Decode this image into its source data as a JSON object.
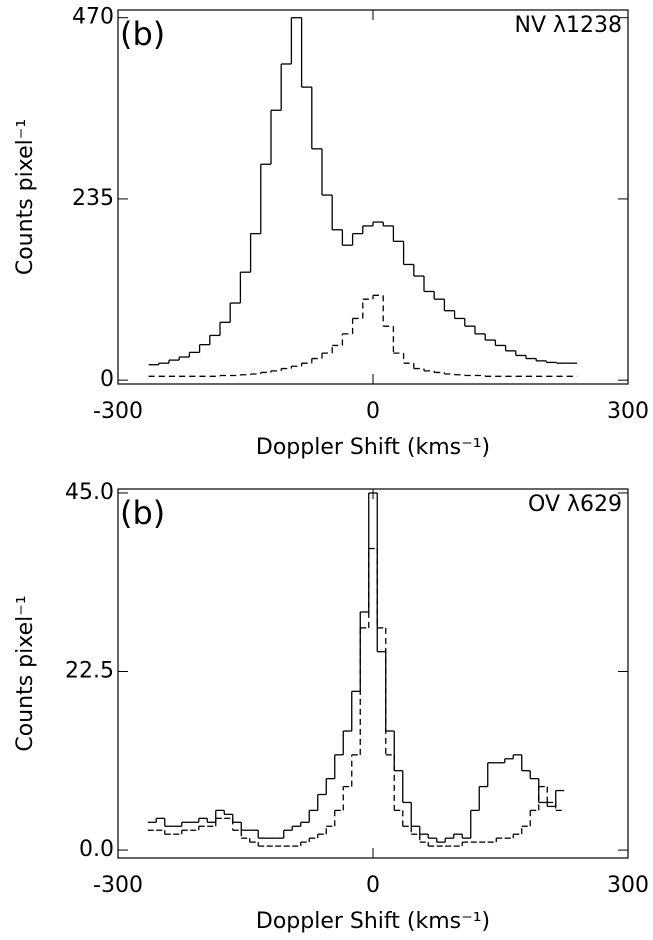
{
  "chart_data": [
    {
      "type": "step",
      "annotations": [
        "(b)",
        "NV λ1238"
      ],
      "x_label": "Doppler Shift (kms⁻¹)",
      "y_label": "Counts pixel⁻¹",
      "x": [
        -258,
        -246,
        -234,
        -222,
        -210,
        -198,
        -186,
        -174,
        -162,
        -150,
        -138,
        -126,
        -114,
        -102,
        -90,
        -78,
        -66,
        -54,
        -42,
        -30,
        -18,
        -6,
        6,
        18,
        30,
        42,
        54,
        66,
        78,
        90,
        102,
        114,
        126,
        138,
        150,
        162,
        174,
        186,
        198,
        210,
        222,
        234
      ],
      "series": [
        {
          "color": "#000000",
          "dash": "none",
          "values": [
            20,
            22,
            26,
            30,
            36,
            46,
            58,
            75,
            100,
            140,
            190,
            280,
            350,
            410,
            470,
            380,
            300,
            240,
            195,
            175,
            190,
            200,
            205,
            200,
            180,
            150,
            135,
            115,
            105,
            90,
            80,
            70,
            60,
            52,
            45,
            38,
            32,
            28,
            25,
            23,
            22,
            22
          ]
        },
        {
          "color": "#000000",
          "dash": "6,4",
          "values": [
            5,
            5,
            5,
            5,
            5,
            5,
            5,
            6,
            6,
            7,
            8,
            10,
            12,
            15,
            18,
            22,
            28,
            35,
            45,
            60,
            80,
            105,
            110,
            70,
            35,
            22,
            15,
            12,
            10,
            8,
            7,
            6,
            6,
            5,
            5,
            5,
            5,
            5,
            5,
            5,
            5,
            5
          ]
        }
      ],
      "xlim": [
        -300,
        300
      ],
      "xticks": [
        -300,
        0,
        300
      ],
      "ylim": [
        -5,
        480
      ],
      "yticks": [
        0,
        235,
        470
      ]
    },
    {
      "type": "step",
      "annotations": [
        "(b)",
        "OV λ629"
      ],
      "x_label": "Doppler Shift (kms⁻¹)",
      "y_label": "Counts pixel⁻¹",
      "x": [
        -260,
        -250,
        -240,
        -230,
        -220,
        -210,
        -200,
        -190,
        -180,
        -170,
        -160,
        -150,
        -140,
        -130,
        -120,
        -110,
        -100,
        -90,
        -80,
        -70,
        -60,
        -50,
        -40,
        -30,
        -20,
        -10,
        0,
        10,
        20,
        30,
        40,
        50,
        60,
        70,
        80,
        90,
        100,
        110,
        120,
        130,
        140,
        150,
        160,
        170,
        180,
        190,
        200,
        210,
        220
      ],
      "series": [
        {
          "color": "#000000",
          "dash": "none",
          "values": [
            3.5,
            4,
            3,
            3,
            3.5,
            3.5,
            4,
            3.5,
            5,
            4.5,
            3.5,
            2.5,
            2.5,
            1.5,
            1.5,
            1.5,
            2.5,
            3,
            3.5,
            5,
            7,
            9,
            12,
            15,
            20,
            30,
            45,
            25,
            15,
            10,
            6,
            3,
            2,
            1.5,
            1,
            1.5,
            2,
            1.5,
            5,
            8,
            11,
            11,
            11.5,
            12,
            10,
            9,
            6,
            5.5,
            7.5
          ]
        },
        {
          "color": "#000000",
          "dash": "6,4",
          "values": [
            2.5,
            2.5,
            2,
            2,
            2.5,
            2.5,
            3,
            3,
            4,
            4,
            2.5,
            1.5,
            1,
            0.5,
            0.5,
            0.5,
            0.5,
            0.5,
            1,
            1.5,
            2,
            3,
            5,
            8,
            12,
            28,
            38,
            28,
            12,
            5,
            3,
            2,
            1,
            0.5,
            0.5,
            0.5,
            0.5,
            1,
            1,
            1,
            1,
            1.5,
            1.5,
            2,
            3,
            5,
            8,
            6,
            5
          ]
        }
      ],
      "xlim": [
        -300,
        300
      ],
      "xticks": [
        -300,
        0,
        300
      ],
      "ylim": [
        -1,
        45.5
      ],
      "yticks": [
        {
          "value": 0,
          "label": "0.0"
        },
        22.5,
        {
          "value": 45,
          "label": "45.0"
        }
      ]
    }
  ]
}
